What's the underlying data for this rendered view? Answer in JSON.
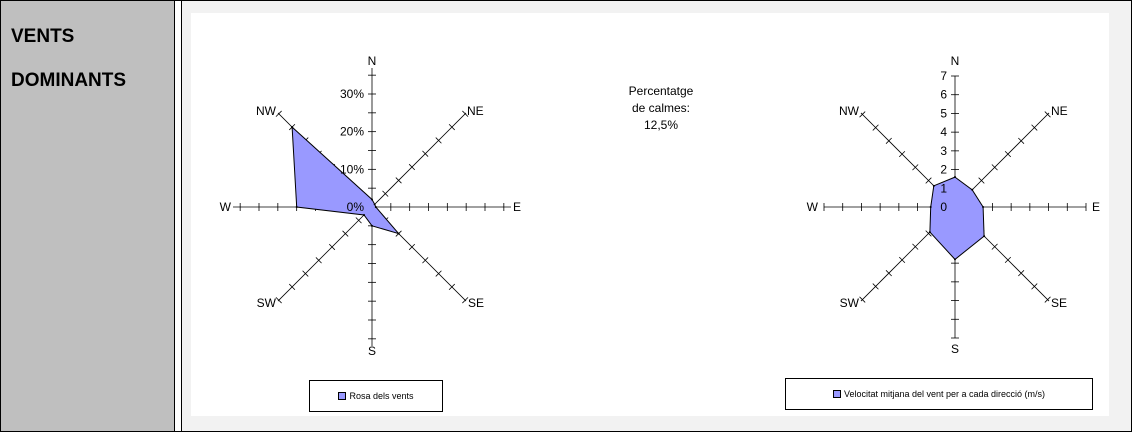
{
  "label": {
    "line1": "VENTS",
    "line2": "DOMINANTS"
  },
  "calm": {
    "line1": "Percentatge",
    "line2": "de calmes:",
    "line3": "12,5%"
  },
  "colors": {
    "fill": "#9999ff",
    "stroke": "#000000",
    "axis": "#000000"
  },
  "chart_data": [
    {
      "type": "radar",
      "directions": [
        "N",
        "NE",
        "E",
        "SE",
        "S",
        "SW",
        "W",
        "NW"
      ],
      "values": [
        2,
        1,
        1,
        10,
        5,
        3,
        20,
        30
      ],
      "rlim": [
        0,
        30
      ],
      "ticks": [
        0,
        10,
        20,
        30
      ],
      "tick_labels": [
        "0%",
        "10%",
        "20%",
        "30%"
      ],
      "legend": "Rosa dels vents"
    },
    {
      "type": "radar",
      "directions": [
        "N",
        "NE",
        "E",
        "SE",
        "S",
        "SW",
        "W",
        "NW"
      ],
      "values": [
        1.6,
        1.3,
        1.5,
        2.2,
        2.8,
        1.9,
        1.3,
        1.6
      ],
      "rlim": [
        0,
        7
      ],
      "ticks": [
        0,
        1,
        2,
        3,
        4,
        5,
        6,
        7
      ],
      "tick_labels": [
        "0",
        "1",
        "2",
        "3",
        "4",
        "5",
        "6",
        "7"
      ],
      "legend": "Velocitat mitjana del vent per a cada direcció (m/s)"
    }
  ]
}
